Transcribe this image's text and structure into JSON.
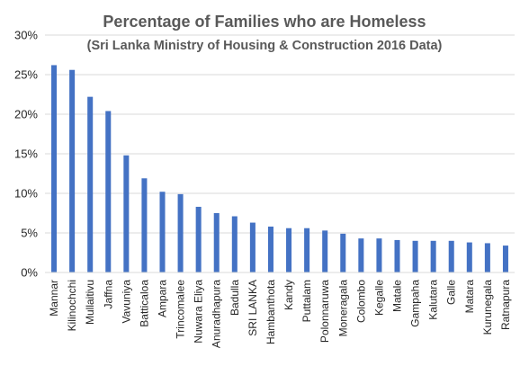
{
  "chart_data": {
    "type": "bar",
    "title": "Percentage of Families who are Homeless",
    "subtitle": "(Sri Lanka Ministry of Housing & Construction 2016 Data)",
    "xlabel": "",
    "ylabel": "",
    "ylim": [
      0,
      30
    ],
    "yticks": [
      "0%",
      "5%",
      "10%",
      "15%",
      "20%",
      "25%",
      "30%"
    ],
    "grid": true,
    "legend": "none",
    "bar_color": "#4472C4",
    "categories": [
      "Mannar",
      "Kilinochchi",
      "Mullaitivu",
      "Jaffna",
      "Vavuniya",
      "Batticaloa",
      "Ampara",
      "Trincomalee",
      "Nuwara Eliya",
      "Anuradhapura",
      "Badulla",
      "SRI LANKA",
      "Hambanthota",
      "Kandy",
      "Puttalam",
      "Polonnaruwa",
      "Moneragala",
      "Colombo",
      "Kegalle",
      "Matale",
      "Gampaha",
      "Kalutara",
      "Galle",
      "Matara",
      "Kurunegala",
      "Ratnapura"
    ],
    "values": [
      26.2,
      25.6,
      22.2,
      20.4,
      14.8,
      11.9,
      10.2,
      9.9,
      8.3,
      7.5,
      7.1,
      6.3,
      5.8,
      5.6,
      5.6,
      5.3,
      4.9,
      4.3,
      4.3,
      4.1,
      4.0,
      4.0,
      4.0,
      3.8,
      3.7,
      3.4
    ]
  }
}
